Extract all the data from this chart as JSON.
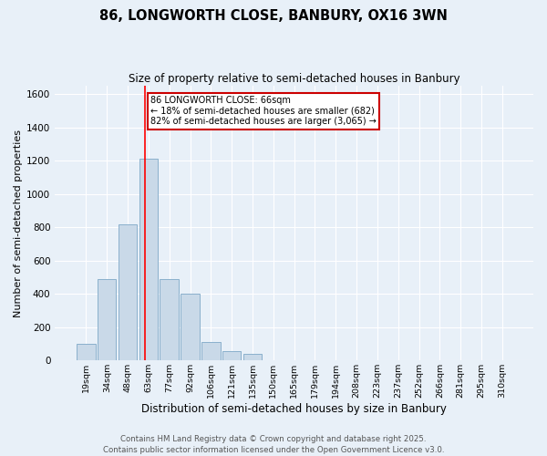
{
  "title_line1": "86, LONGWORTH CLOSE, BANBURY, OX16 3WN",
  "title_line2": "Size of property relative to semi-detached houses in Banbury",
  "xlabel": "Distribution of semi-detached houses by size in Banbury",
  "ylabel": "Number of semi-detached properties",
  "categories": [
    "19sqm",
    "34sqm",
    "48sqm",
    "63sqm",
    "77sqm",
    "92sqm",
    "106sqm",
    "121sqm",
    "135sqm",
    "150sqm",
    "165sqm",
    "179sqm",
    "194sqm",
    "208sqm",
    "223sqm",
    "237sqm",
    "252sqm",
    "266sqm",
    "281sqm",
    "295sqm",
    "310sqm"
  ],
  "values": [
    100,
    490,
    820,
    1215,
    490,
    400,
    110,
    55,
    40,
    0,
    0,
    0,
    0,
    0,
    0,
    0,
    0,
    0,
    0,
    0,
    0
  ],
  "bar_color": "#c9d9e8",
  "bar_edge_color": "#8ab0cc",
  "red_line_index": 2.85,
  "annotation_title": "86 LONGWORTH CLOSE: 66sqm",
  "annotation_line2": "← 18% of semi-detached houses are smaller (682)",
  "annotation_line3": "82% of semi-detached houses are larger (3,065) →",
  "annotation_box_color": "#ffffff",
  "annotation_box_edge": "#cc0000",
  "ylim": [
    0,
    1650
  ],
  "yticks": [
    0,
    200,
    400,
    600,
    800,
    1000,
    1200,
    1400,
    1600
  ],
  "background_color": "#e8f0f8",
  "grid_color": "#ffffff",
  "footer_line1": "Contains HM Land Registry data © Crown copyright and database right 2025.",
  "footer_line2": "Contains public sector information licensed under the Open Government Licence v3.0."
}
